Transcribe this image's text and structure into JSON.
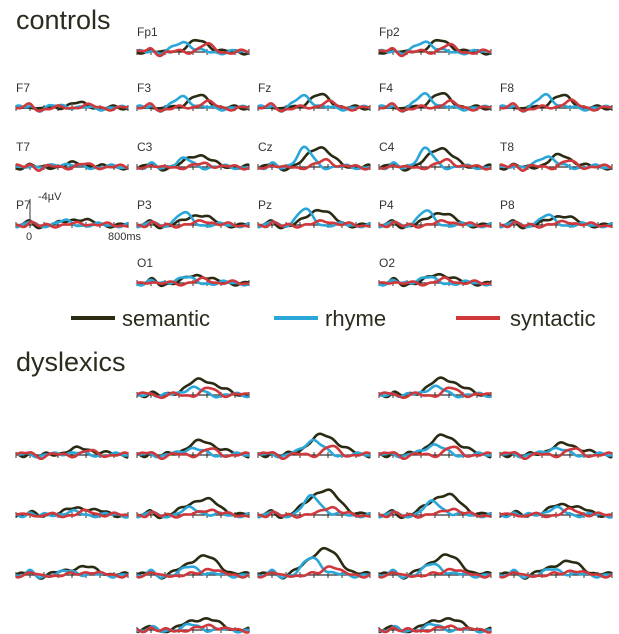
{
  "chart_data": {
    "type": "line",
    "groups": [
      {
        "title": "controls"
      },
      {
        "title": "dyslexics"
      }
    ],
    "electrodes": [
      "Fp1",
      "Fp2",
      "F7",
      "F3",
      "Fz",
      "F4",
      "F8",
      "T7",
      "C3",
      "Cz",
      "C4",
      "T8",
      "P7",
      "P3",
      "Pz",
      "P4",
      "P8",
      "O1",
      "O2"
    ],
    "series": [
      {
        "name": "semantic",
        "color": "#2b2b14"
      },
      {
        "name": "rhyme",
        "color": "#2aa7d8"
      },
      {
        "name": "syntactic",
        "color": "#d0383c"
      }
    ],
    "scale": {
      "amplitude_label": "-4µV",
      "time_start_label": "0",
      "time_end_label": "800ms"
    },
    "x": [
      0,
      50,
      100,
      150,
      200,
      250,
      300,
      350,
      400,
      450,
      500,
      550,
      600,
      650,
      700,
      750,
      800
    ],
    "amplitude_unit": "µV",
    "traces": {
      "controls": {
        "semantic": {
          "peak_ms": 440,
          "width_ms": 110,
          "amp": {
            "Fp1": 2.4,
            "Fp2": 2.4,
            "F7": 1.0,
            "F3": 2.6,
            "Fz": 2.8,
            "F4": 3.0,
            "F8": 2.6,
            "T7": 0.8,
            "C3": 2.8,
            "Cz": 4.6,
            "C4": 4.4,
            "T8": 2.6,
            "P7": 1.4,
            "P3": 2.4,
            "Pz": 3.6,
            "P4": 2.9,
            "P8": 2.2,
            "O1": 1.8,
            "O2": 2.0
          }
        },
        "rhyme": {
          "peak_ms": 330,
          "width_ms": 75,
          "amp": {
            "Fp1": 2.4,
            "Fp2": 2.5,
            "F7": 0.6,
            "F3": 2.6,
            "Fz": 2.8,
            "F4": 3.2,
            "F8": 3.0,
            "T7": 0.8,
            "C3": 1.8,
            "Cz": 4.2,
            "C4": 4.0,
            "T8": 2.6,
            "P7": 0.8,
            "P3": 2.6,
            "Pz": 3.4,
            "P4": 3.0,
            "P8": 2.0,
            "O1": 1.4,
            "O2": 1.4
          }
        },
        "syntactic": {
          "peak_ms": 490,
          "width_ms": 70,
          "amp": {
            "Fp1": 1.6,
            "Fp2": 1.4,
            "F7": 0.6,
            "F3": 1.4,
            "Fz": 1.4,
            "F4": 1.4,
            "F8": 1.6,
            "T7": 0.5,
            "C3": 0.8,
            "Cz": 1.6,
            "C4": 1.6,
            "T8": 1.2,
            "P7": 0.4,
            "P3": 1.0,
            "Pz": 1.0,
            "P4": 1.0,
            "P8": 0.8,
            "O1": 0.8,
            "O2": 0.8
          }
        }
      },
      "dyslexics": {
        "semantic": {
          "peak_ms": 470,
          "width_ms": 150,
          "amp": {
            "Fp1": 3.4,
            "Fp2": 3.6,
            "F7": 1.4,
            "F3": 3.0,
            "Fz": 4.4,
            "F4": 4.2,
            "F8": 2.4,
            "T7": 1.6,
            "C3": 3.6,
            "Cz": 5.6,
            "C4": 4.6,
            "T8": 2.4,
            "P7": 1.8,
            "P3": 4.2,
            "Pz": 5.8,
            "P4": 4.4,
            "P8": 3.0,
            "O1": 2.6,
            "O2": 2.6
          }
        },
        "rhyme": {
          "peak_ms": 390,
          "width_ms": 90,
          "amp": {
            "Fp1": 1.6,
            "Fp2": 1.8,
            "F7": 0.6,
            "F3": 1.6,
            "Fz": 3.4,
            "F4": 2.4,
            "F8": 1.6,
            "T7": 0.6,
            "C3": 1.4,
            "Cz": 4.0,
            "C4": 2.8,
            "T8": 1.4,
            "P7": 0.8,
            "P3": 1.8,
            "Pz": 3.8,
            "P4": 2.4,
            "P8": 1.2,
            "O1": 1.0,
            "O2": 1.0
          }
        },
        "syntactic": {
          "peak_ms": 520,
          "width_ms": 70,
          "amp": {
            "Fp1": 1.4,
            "Fp2": 1.4,
            "F7": 0.8,
            "F3": 1.2,
            "Fz": 1.8,
            "F4": 1.6,
            "F8": 1.2,
            "T7": 0.8,
            "C3": 1.4,
            "Cz": 2.0,
            "C4": 1.6,
            "T8": 1.2,
            "P7": 0.8,
            "P3": 1.6,
            "Pz": 2.2,
            "P4": 1.6,
            "P8": 1.2,
            "O1": 1.2,
            "O2": 1.0
          }
        }
      }
    }
  }
}
